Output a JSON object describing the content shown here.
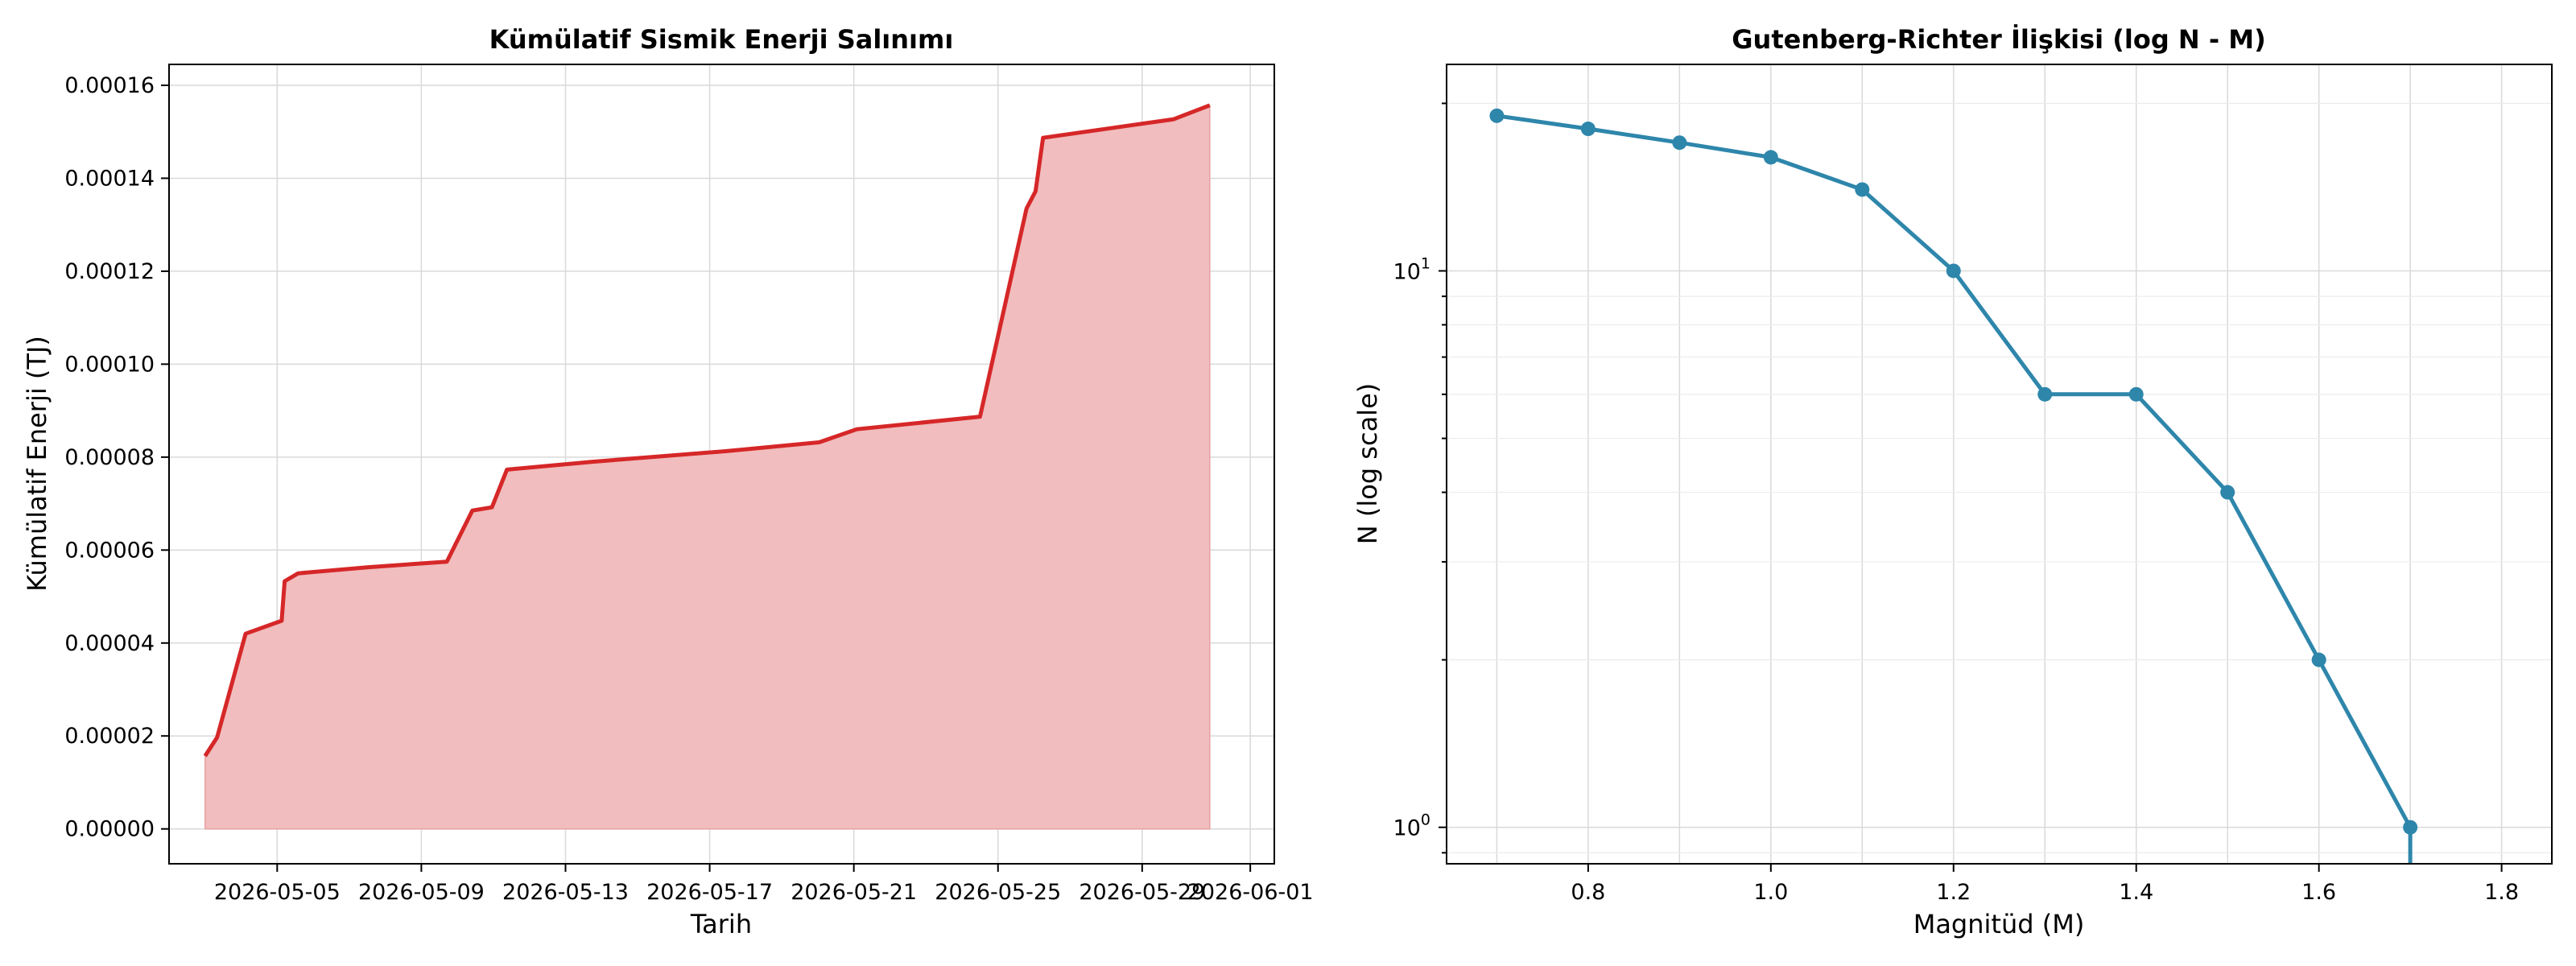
{
  "chart_data": [
    {
      "type": "area",
      "title": "Kümülatif Sismik Enerji Salınımı",
      "xlabel": "Tarih",
      "ylabel": "Kümülatif Enerji (TJ)",
      "x_tick_labels": [
        "2026-05-05",
        "2026-05-09",
        "2026-05-13",
        "2026-05-17",
        "2026-05-21",
        "2026-05-25",
        "2026-05-29",
        "2026-06-01"
      ],
      "y_tick_labels": [
        "0.00000",
        "0.00002",
        "0.00004",
        "0.00006",
        "0.00008",
        "0.00010",
        "0.00012",
        "0.00014",
        "0.00016"
      ],
      "ylim": [
        -7.5e-06,
        0.0001645
      ],
      "xlim": [
        "2026-05-02T00:00",
        "2026-06-01T16:00"
      ],
      "grid": true,
      "line_color": "#d62728",
      "fill_color": "#f1bdbe",
      "series": [
        {
          "x": [
            "2026-05-03T00:00",
            "2026-05-03T08:00",
            "2026-05-04T03:00",
            "2026-05-05T03:00",
            "2026-05-05T05:00",
            "2026-05-05T14:00",
            "2026-05-07T12:00",
            "2026-05-09T17:00",
            "2026-05-10T10:00",
            "2026-05-10T23:00",
            "2026-05-11T09:00",
            "2026-05-13T18:00",
            "2026-05-17T12:00",
            "2026-05-20T01:00",
            "2026-05-21T02:00",
            "2026-05-24T12:00",
            "2026-05-25T19:00",
            "2026-05-26T01:00",
            "2026-05-26T06:00",
            "2026-05-29T21:00",
            "2026-05-30T21:00"
          ],
          "y": [
            1.57e-05,
            1.97e-05,
            4.2e-05,
            4.48e-05,
            5.33e-05,
            5.5e-05,
            5.63e-05,
            5.75e-05,
            6.85e-05,
            6.92e-05,
            7.73e-05,
            7.9e-05,
            8.13e-05,
            8.32e-05,
            8.6e-05,
            8.87e-05,
            0.0001335,
            0.0001372,
            0.0001487,
            0.0001527,
            0.0001557
          ]
        }
      ]
    },
    {
      "type": "line",
      "title": "Gutenberg-Richter İlişkisi (log N - M)",
      "xlabel": "Magnitüd (M)",
      "ylabel": "N (log scale)",
      "y_scale": "log",
      "x_tick_labels": [
        "0.8",
        "1.0",
        "1.2",
        "1.4",
        "1.6",
        "1.8"
      ],
      "y_tick_labels": [
        {
          "base": "10",
          "exp": "0"
        },
        {
          "base": "10",
          "exp": "1"
        }
      ],
      "xlim": [
        0.645,
        1.855
      ],
      "ylim": [
        0.86,
        23.5
      ],
      "grid": true,
      "color": "#2e86ab",
      "series": [
        {
          "x": [
            0.7,
            0.8,
            0.9,
            1.0,
            1.1,
            1.2,
            1.3,
            1.4,
            1.5,
            1.6,
            1.7
          ],
          "y": [
            19,
            18,
            17,
            16,
            14,
            10,
            6,
            6,
            4,
            2,
            1
          ]
        }
      ]
    }
  ]
}
